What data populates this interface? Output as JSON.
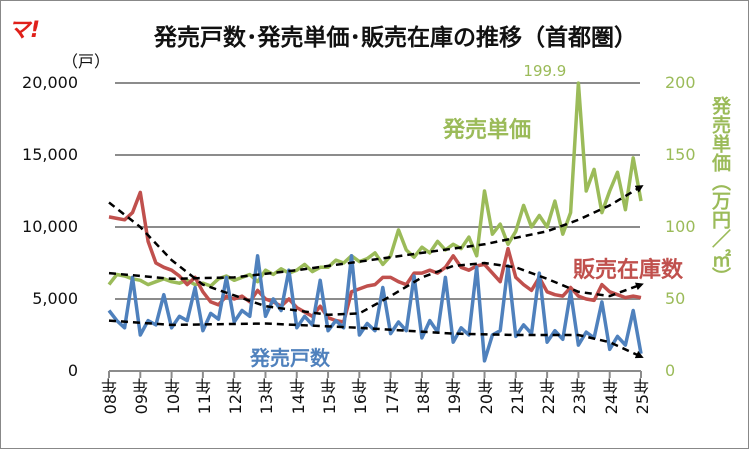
{
  "logo_text": "マ!",
  "chart_data": {
    "type": "line",
    "title": "発売戸数･発売単価･販売在庫の推移（首都圏）",
    "y_left": {
      "unit_label": "（戸）",
      "range": [
        0,
        20000
      ],
      "ticks": [
        "0",
        "5,000",
        "10,000",
        "15,000",
        "20,000"
      ],
      "tick_values": [
        0,
        5000,
        10000,
        15000,
        20000
      ]
    },
    "y_right": {
      "title": "発売単価（万円／㎡）",
      "range": [
        0,
        200
      ],
      "ticks": [
        "0",
        "50",
        "100",
        "150",
        "200"
      ],
      "tick_values": [
        0,
        50,
        100,
        150,
        200
      ]
    },
    "x_range": [
      2008,
      2025
    ],
    "x_ticks": [
      "08年",
      "09年",
      "10年",
      "11年",
      "12年",
      "13年",
      "14年",
      "15年",
      "16年",
      "17年",
      "18年",
      "19年",
      "20年",
      "21年",
      "22年",
      "23年",
      "24年",
      "25年"
    ],
    "grid": true,
    "legend": "inline labels",
    "annotation": "199.9",
    "series": [
      {
        "name": "発売戸数",
        "axis": "left",
        "color": "#4f81bd",
        "values": [
          4200,
          3500,
          3000,
          6500,
          2500,
          3500,
          3200,
          5300,
          3000,
          3800,
          3500,
          5800,
          2800,
          4000,
          3600,
          6500,
          3400,
          4200,
          3800,
          8000,
          3800,
          5000,
          4200,
          7000,
          3000,
          3800,
          3200,
          6300,
          2800,
          3500,
          3000,
          8000,
          2500,
          3300,
          2800,
          5800,
          2600,
          3400,
          2800,
          6600,
          2300,
          3500,
          2700,
          6500,
          2000,
          3000,
          2500,
          7200,
          700,
          2500,
          2800,
          7300,
          2400,
          3200,
          2600,
          6800,
          2000,
          2800,
          2200,
          5500,
          1800,
          2700,
          2300,
          4800,
          1500,
          2400,
          1800,
          4200,
          1200
        ]
      },
      {
        "name": "販売在庫数",
        "axis": "left",
        "color": "#c0504d",
        "values": [
          10700,
          10600,
          10500,
          11000,
          12400,
          9000,
          7500,
          7200,
          7000,
          6600,
          6000,
          6500,
          5500,
          4800,
          4600,
          5200,
          5000,
          5200,
          4800,
          5600,
          5000,
          4800,
          4500,
          5000,
          4400,
          4100,
          3800,
          4500,
          3700,
          3500,
          3400,
          5500,
          5700,
          5900,
          6000,
          6500,
          6500,
          6200,
          6000,
          6800,
          6800,
          7000,
          6800,
          7200,
          8000,
          7200,
          7000,
          7300,
          7400,
          6800,
          6200,
          8500,
          6500,
          6000,
          5600,
          6500,
          5500,
          5300,
          5200,
          5800,
          5200,
          5000,
          4900,
          6000,
          5500,
          5300,
          5100,
          5200,
          5100
        ]
      },
      {
        "name": "発売単価",
        "axis": "right",
        "color": "#9bbb59",
        "values": [
          60,
          67,
          66,
          64,
          63,
          60,
          62,
          64,
          62,
          61,
          63,
          60,
          61,
          59,
          64,
          66,
          63,
          65,
          67,
          62,
          70,
          67,
          71,
          68,
          70,
          74,
          69,
          72,
          72,
          77,
          75,
          80,
          76,
          78,
          82,
          74,
          80,
          98,
          84,
          79,
          86,
          82,
          90,
          84,
          88,
          85,
          93,
          80,
          125,
          95,
          102,
          88,
          97,
          115,
          100,
          108,
          100,
          118,
          95,
          110,
          199.9,
          125,
          140,
          110,
          125,
          138,
          112,
          148,
          118
        ]
      }
    ],
    "x_step_years": 0.25,
    "trendlines": [
      {
        "of": "発売戸数",
        "axis": "left",
        "x": [
          2008,
          2010,
          2013,
          2016,
          2019,
          2021,
          2023,
          2024,
          2025
        ],
        "y": [
          3500,
          3200,
          3300,
          3000,
          2600,
          2500,
          2500,
          2000,
          1000
        ]
      },
      {
        "of": "販売在庫数",
        "axis": "left",
        "x": [
          2008,
          2009,
          2010,
          2011,
          2013,
          2015,
          2016,
          2017,
          2018,
          2019,
          2020,
          2021,
          2022,
          2023,
          2024,
          2025
        ],
        "y": [
          11700,
          10000,
          7700,
          6000,
          4500,
          3900,
          4000,
          5200,
          6500,
          7300,
          7500,
          7200,
          6400,
          5500,
          5200,
          6000
        ]
      },
      {
        "of": "発売単価",
        "axis": "right",
        "x": [
          2008,
          2010,
          2012,
          2014,
          2016,
          2018,
          2020,
          2022,
          2023,
          2024,
          2025
        ],
        "y": [
          68,
          64,
          65,
          70,
          76,
          82,
          88,
          97,
          105,
          115,
          128
        ]
      }
    ]
  }
}
